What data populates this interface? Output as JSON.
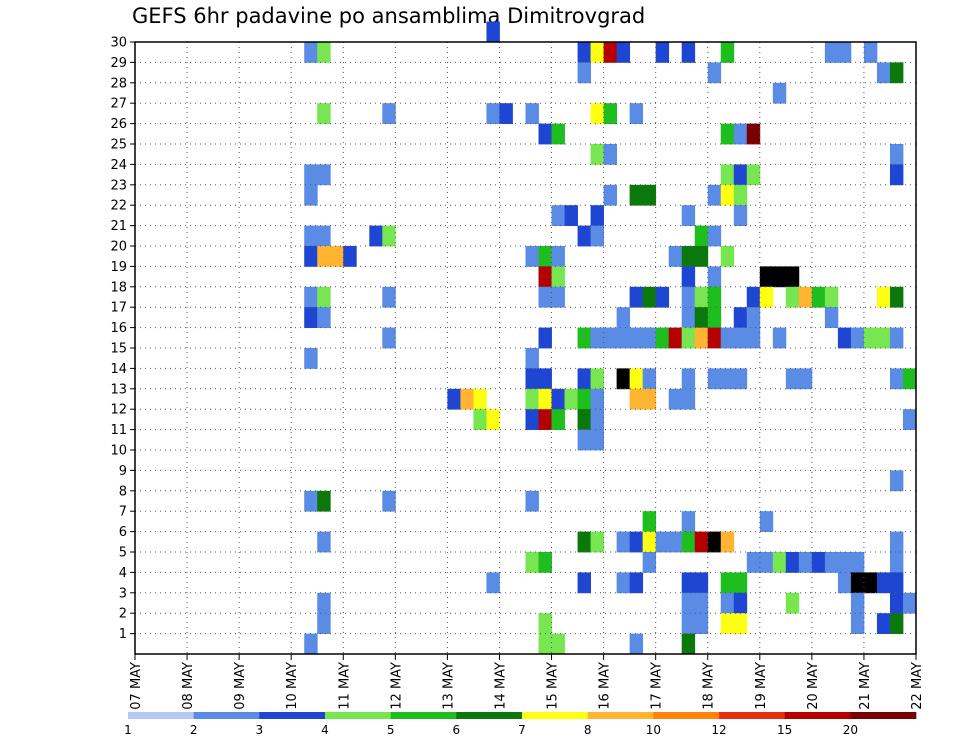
{
  "chart_data": {
    "type": "heatmap",
    "title": "GEFS 6hr padavine po ansamblima Dimitrovgrad",
    "xlabel": "",
    "ylabel": "",
    "x_tick_labels": [
      "07 MAY",
      "08 MAY",
      "09 MAY",
      "10 MAY",
      "11 MAY",
      "12 MAY",
      "13 MAY",
      "14 MAY",
      "15 MAY",
      "16 MAY",
      "17 MAY",
      "18 MAY",
      "19 MAY",
      "20 MAY",
      "21 MAY",
      "22 MAY"
    ],
    "y_tick_labels": [
      "1",
      "2",
      "3",
      "4",
      "5",
      "6",
      "7",
      "8",
      "9",
      "10",
      "11",
      "12",
      "13",
      "14",
      "15",
      "16",
      "17",
      "18",
      "19",
      "20",
      "21",
      "22",
      "23",
      "24",
      "25",
      "26",
      "27",
      "28",
      "29",
      "30"
    ],
    "ylim": [
      0,
      30
    ],
    "x_steps_per_day": 4,
    "x_steps_total": 60,
    "grid": true,
    "legend": {
      "position": "bottom",
      "labels": [
        "1",
        "2",
        "3",
        "4",
        "5",
        "6",
        "7",
        "8",
        "10",
        "12",
        "15",
        "20"
      ],
      "colors": [
        "#b4c8f5",
        "#5a8ce6",
        "#1e46d2",
        "#78e650",
        "#1ebe1e",
        "#0a780a",
        "#ffff14",
        "#ffb432",
        "#ff820a",
        "#e6320a",
        "#b40000",
        "#780000"
      ]
    },
    "cells": [
      [
        27,
        30,
        2
      ],
      [
        13,
        29,
        1
      ],
      [
        14,
        29,
        3
      ],
      [
        34,
        29,
        2
      ],
      [
        35,
        29,
        6
      ],
      [
        36,
        29,
        10
      ],
      [
        37,
        29,
        2
      ],
      [
        40,
        29,
        2
      ],
      [
        42,
        29,
        2
      ],
      [
        45,
        29,
        4
      ],
      [
        53,
        29,
        1
      ],
      [
        54,
        29,
        1
      ],
      [
        56,
        29,
        1
      ],
      [
        34,
        28,
        1
      ],
      [
        44,
        28,
        1
      ],
      [
        57,
        28,
        1
      ],
      [
        58,
        28,
        5
      ],
      [
        49,
        27,
        1
      ],
      [
        14,
        26,
        3
      ],
      [
        19,
        26,
        1
      ],
      [
        27,
        26,
        1
      ],
      [
        28,
        26,
        2
      ],
      [
        30,
        26,
        1
      ],
      [
        35,
        26,
        6
      ],
      [
        36,
        26,
        4
      ],
      [
        38,
        26,
        1
      ],
      [
        31,
        25,
        2
      ],
      [
        32,
        25,
        4
      ],
      [
        45,
        25,
        4
      ],
      [
        46,
        25,
        1
      ],
      [
        47,
        25,
        11
      ],
      [
        35,
        24,
        3
      ],
      [
        36,
        24,
        1
      ],
      [
        58,
        24,
        1
      ],
      [
        13,
        23,
        1
      ],
      [
        14,
        23,
        1
      ],
      [
        45,
        23,
        3
      ],
      [
        46,
        23,
        2
      ],
      [
        47,
        23,
        3
      ],
      [
        58,
        23,
        2
      ],
      [
        13,
        22,
        1
      ],
      [
        36,
        22,
        1
      ],
      [
        38,
        22,
        5
      ],
      [
        39,
        22,
        5
      ],
      [
        44,
        22,
        1
      ],
      [
        45,
        22,
        6
      ],
      [
        46,
        22,
        3
      ],
      [
        32,
        21,
        1
      ],
      [
        33,
        21,
        2
      ],
      [
        35,
        21,
        2
      ],
      [
        42,
        21,
        1
      ],
      [
        46,
        21,
        1
      ],
      [
        13,
        20,
        1
      ],
      [
        14,
        20,
        1
      ],
      [
        18,
        20,
        2
      ],
      [
        19,
        20,
        3
      ],
      [
        34,
        20,
        2
      ],
      [
        35,
        20,
        1
      ],
      [
        43,
        20,
        4
      ],
      [
        44,
        20,
        1
      ],
      [
        13,
        19,
        2
      ],
      [
        14,
        19,
        7
      ],
      [
        15,
        19,
        7
      ],
      [
        16,
        19,
        2
      ],
      [
        30,
        19,
        1
      ],
      [
        31,
        19,
        4
      ],
      [
        32,
        19,
        1
      ],
      [
        41,
        19,
        1
      ],
      [
        42,
        19,
        5
      ],
      [
        43,
        19,
        5
      ],
      [
        45,
        19,
        3
      ],
      [
        31,
        18,
        10
      ],
      [
        32,
        18,
        3
      ],
      [
        42,
        18,
        2
      ],
      [
        44,
        18,
        1
      ],
      [
        48,
        18,
        12
      ],
      [
        49,
        18,
        15
      ],
      [
        50,
        18,
        15
      ],
      [
        13,
        17,
        1
      ],
      [
        14,
        17,
        3
      ],
      [
        19,
        17,
        1
      ],
      [
        31,
        17,
        1
      ],
      [
        32,
        17,
        1
      ],
      [
        38,
        17,
        2
      ],
      [
        39,
        17,
        5
      ],
      [
        40,
        17,
        2
      ],
      [
        42,
        17,
        1
      ],
      [
        43,
        17,
        3
      ],
      [
        44,
        17,
        4
      ],
      [
        47,
        17,
        2
      ],
      [
        48,
        17,
        6
      ],
      [
        50,
        17,
        3
      ],
      [
        51,
        17,
        7
      ],
      [
        52,
        17,
        4
      ],
      [
        53,
        17,
        3
      ],
      [
        57,
        17,
        6
      ],
      [
        58,
        17,
        5
      ],
      [
        13,
        16,
        2
      ],
      [
        14,
        16,
        1
      ],
      [
        37,
        16,
        1
      ],
      [
        42,
        16,
        1
      ],
      [
        43,
        16,
        5
      ],
      [
        44,
        16,
        4
      ],
      [
        46,
        16,
        2
      ],
      [
        47,
        16,
        1
      ],
      [
        53,
        16,
        1
      ],
      [
        19,
        15,
        1
      ],
      [
        31,
        15,
        2
      ],
      [
        34,
        15,
        4
      ],
      [
        35,
        15,
        1
      ],
      [
        36,
        15,
        1
      ],
      [
        37,
        15,
        1
      ],
      [
        38,
        15,
        1
      ],
      [
        39,
        15,
        1
      ],
      [
        40,
        15,
        4
      ],
      [
        41,
        15,
        10
      ],
      [
        42,
        15,
        3
      ],
      [
        43,
        15,
        7
      ],
      [
        44,
        15,
        10
      ],
      [
        45,
        15,
        1
      ],
      [
        46,
        15,
        1
      ],
      [
        47,
        15,
        1
      ],
      [
        49,
        15,
        1
      ],
      [
        54,
        15,
        2
      ],
      [
        55,
        15,
        1
      ],
      [
        56,
        15,
        3
      ],
      [
        57,
        15,
        3
      ],
      [
        58,
        15,
        1
      ],
      [
        13,
        14,
        1
      ],
      [
        30,
        14,
        1
      ],
      [
        30,
        13,
        2
      ],
      [
        31,
        13,
        2
      ],
      [
        34,
        13,
        2
      ],
      [
        35,
        13,
        3
      ],
      [
        37,
        13,
        15
      ],
      [
        38,
        13,
        6
      ],
      [
        39,
        13,
        1
      ],
      [
        42,
        13,
        1
      ],
      [
        44,
        13,
        1
      ],
      [
        45,
        13,
        1
      ],
      [
        46,
        13,
        1
      ],
      [
        50,
        13,
        1
      ],
      [
        51,
        13,
        1
      ],
      [
        58,
        13,
        1
      ],
      [
        59,
        13,
        4
      ],
      [
        24,
        12,
        2
      ],
      [
        25,
        12,
        7
      ],
      [
        26,
        12,
        6
      ],
      [
        30,
        12,
        3
      ],
      [
        31,
        12,
        6
      ],
      [
        32,
        12,
        2
      ],
      [
        33,
        12,
        3
      ],
      [
        34,
        12,
        4
      ],
      [
        35,
        12,
        1
      ],
      [
        38,
        12,
        7
      ],
      [
        39,
        12,
        7
      ],
      [
        41,
        12,
        1
      ],
      [
        42,
        12,
        1
      ],
      [
        26,
        11,
        3
      ],
      [
        27,
        11,
        6
      ],
      [
        30,
        11,
        2
      ],
      [
        31,
        11,
        10
      ],
      [
        32,
        11,
        4
      ],
      [
        34,
        11,
        5
      ],
      [
        35,
        11,
        1
      ],
      [
        59,
        11,
        1
      ],
      [
        34,
        10,
        1
      ],
      [
        35,
        10,
        1
      ],
      [
        58,
        8,
        1
      ],
      [
        13,
        7,
        1
      ],
      [
        14,
        7,
        5
      ],
      [
        19,
        7,
        1
      ],
      [
        30,
        7,
        1
      ],
      [
        39,
        6,
        4
      ],
      [
        42,
        6,
        1
      ],
      [
        48,
        6,
        1
      ],
      [
        14,
        5,
        1
      ],
      [
        34,
        5,
        5
      ],
      [
        35,
        5,
        3
      ],
      [
        37,
        5,
        1
      ],
      [
        38,
        5,
        2
      ],
      [
        39,
        5,
        6
      ],
      [
        40,
        5,
        1
      ],
      [
        41,
        5,
        1
      ],
      [
        42,
        5,
        4
      ],
      [
        43,
        5,
        10
      ],
      [
        44,
        5,
        15
      ],
      [
        45,
        5,
        7
      ],
      [
        58,
        5,
        1
      ],
      [
        30,
        4,
        3
      ],
      [
        31,
        4,
        4
      ],
      [
        39,
        4,
        1
      ],
      [
        47,
        4,
        1
      ],
      [
        48,
        4,
        1
      ],
      [
        49,
        4,
        3
      ],
      [
        50,
        4,
        2
      ],
      [
        51,
        4,
        1
      ],
      [
        52,
        4,
        2
      ],
      [
        53,
        4,
        1
      ],
      [
        54,
        4,
        1
      ],
      [
        55,
        4,
        1
      ],
      [
        58,
        4,
        1
      ],
      [
        27,
        3,
        1
      ],
      [
        34,
        3,
        2
      ],
      [
        37,
        3,
        1
      ],
      [
        38,
        3,
        2
      ],
      [
        42,
        3,
        2
      ],
      [
        43,
        3,
        2
      ],
      [
        45,
        3,
        4
      ],
      [
        46,
        3,
        4
      ],
      [
        54,
        3,
        1
      ],
      [
        55,
        3,
        15
      ],
      [
        56,
        3,
        15
      ],
      [
        57,
        3,
        2
      ],
      [
        58,
        3,
        2
      ],
      [
        14,
        2,
        1
      ],
      [
        42,
        2,
        1
      ],
      [
        43,
        2,
        1
      ],
      [
        45,
        2,
        1
      ],
      [
        46,
        2,
        2
      ],
      [
        50,
        2,
        3
      ],
      [
        55,
        2,
        1
      ],
      [
        58,
        2,
        2
      ],
      [
        59,
        2,
        1
      ],
      [
        14,
        1,
        1
      ],
      [
        31,
        1,
        3
      ],
      [
        42,
        1,
        1
      ],
      [
        43,
        1,
        1
      ],
      [
        45,
        1,
        6
      ],
      [
        46,
        1,
        6
      ],
      [
        55,
        1,
        1
      ],
      [
        57,
        1,
        2
      ],
      [
        58,
        1,
        5
      ],
      [
        13,
        0,
        1
      ],
      [
        31,
        0,
        3
      ],
      [
        32,
        0,
        3
      ],
      [
        38,
        0,
        1
      ],
      [
        42,
        0,
        5
      ]
    ]
  }
}
